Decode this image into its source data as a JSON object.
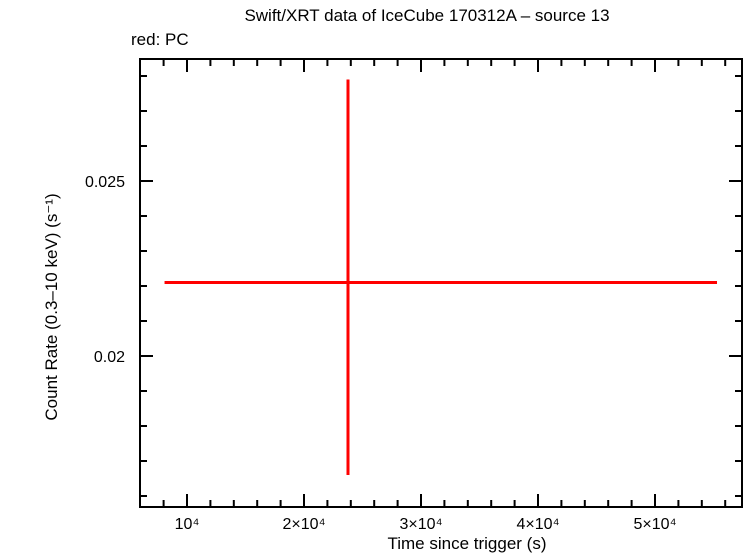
{
  "chart_data": {
    "type": "scatter",
    "title": "Swift/XRT data of IceCube 170312A – source 13",
    "legend_note": "red: PC",
    "legend": [
      {
        "label": "red: PC",
        "series": "PC",
        "color": "#ff0000"
      }
    ],
    "xlabel": "Time since trigger (s)",
    "ylabel": "Count Rate (0.3–10 keV) (s⁻¹)",
    "xlim": [
      5897,
      57521
    ],
    "ylim": [
      0.015657,
      0.028514
    ],
    "x_axis": {
      "scale": "linear",
      "major_ticks": [
        {
          "value": 10000,
          "label": "10⁴"
        },
        {
          "value": 20000,
          "label": "2×10⁴"
        },
        {
          "value": 30000,
          "label": "3×10⁴"
        },
        {
          "value": 40000,
          "label": "4×10⁴"
        },
        {
          "value": 50000,
          "label": "5×10⁴"
        }
      ],
      "minor_tick_step": 2000
    },
    "y_axis": {
      "scale": "linear",
      "major_ticks": [
        {
          "value": 0.025,
          "label": "0.025"
        },
        {
          "value": 0.02,
          "label": "0.02"
        }
      ],
      "minor_tick_step": 0.001
    },
    "grid": false,
    "series": [
      {
        "name": "PC",
        "color": "#ff0000",
        "points": [
          {
            "x": 23760,
            "y": 0.0221,
            "x_low": 8080,
            "x_high": 55300,
            "y_low": 0.0166,
            "y_high": 0.0279
          }
        ]
      }
    ],
    "colors": {
      "data": "#ff0000",
      "axis": "#000000",
      "background": "#ffffff"
    }
  }
}
